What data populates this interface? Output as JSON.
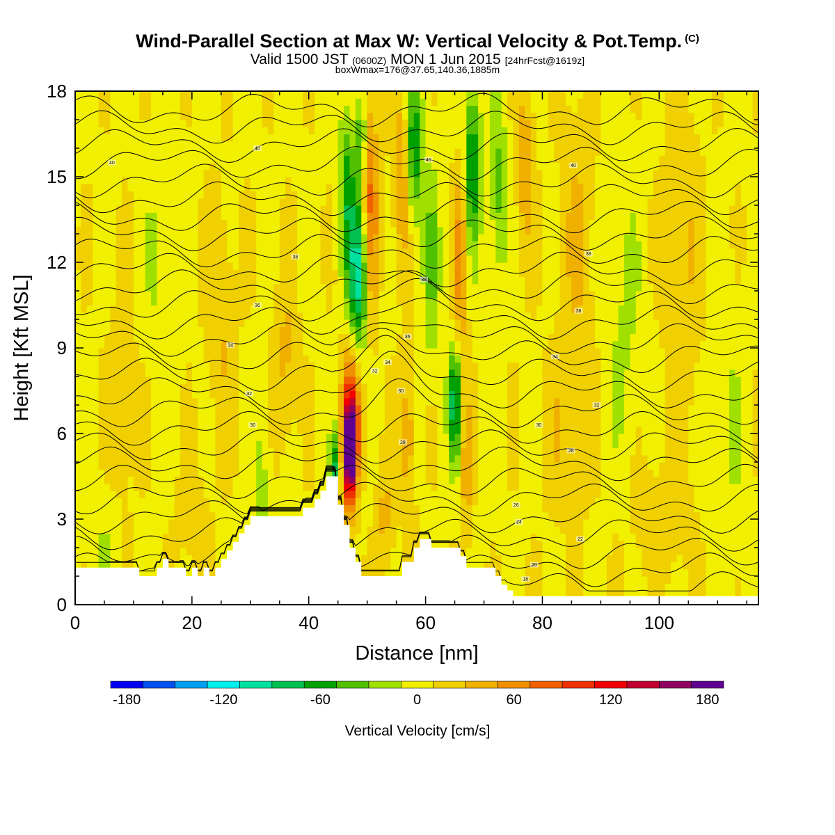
{
  "header": {
    "title": "Wind-Parallel Section at Max W: Vertical Velocity & Pot.Temp.",
    "copyright_mark": "(C)",
    "valid_prefix": "Valid 1500 JST",
    "valid_utc": "(0600Z)",
    "valid_date": "MON 1 Jun 2015",
    "valid_fcst": "[24hrFcst@1619z]",
    "box_info": "boxWmax=176@37.65,140.36,1885m"
  },
  "colors": {
    "terrain": "#ffffff",
    "contour": "#000000",
    "palette": [
      "#0000f0",
      "#0050f0",
      "#00a0f0",
      "#00f0f0",
      "#00e0a0",
      "#00c050",
      "#00a000",
      "#50c000",
      "#a0e000",
      "#f0f000",
      "#f0d000",
      "#f0b000",
      "#f09000",
      "#f06000",
      "#f03000",
      "#f00000",
      "#c00030",
      "#900060",
      "#600090"
    ]
  },
  "chart_data": {
    "type": "heatmap",
    "title": "Wind-Parallel Section at Max W: Vertical Velocity & Pot.Temp.",
    "xlabel": "Distance [nm]",
    "ylabel": "Height [Kft MSL]",
    "xlim": [
      0,
      117
    ],
    "ylim": [
      0,
      18
    ],
    "x_ticks": [
      0,
      20,
      40,
      60,
      80,
      100
    ],
    "y_ticks": [
      0,
      3,
      6,
      9,
      12,
      15,
      18
    ],
    "fill_variable": "Vertical Velocity [cm/s]",
    "colorbar": {
      "title": "Vertical Velocity [cm/s]",
      "min": -190,
      "max": 190,
      "step": 20,
      "ticks": [
        -180,
        -120,
        -60,
        0,
        60,
        120,
        180
      ]
    },
    "terrain_profile": {
      "x": [
        0,
        11,
        11,
        14,
        14,
        15,
        15,
        16,
        16,
        19,
        19,
        20,
        20,
        21,
        21,
        22,
        22,
        23,
        23,
        24,
        24,
        25,
        25,
        26,
        26,
        27,
        27,
        28,
        28,
        29,
        29,
        30,
        30,
        39,
        39,
        41,
        41,
        42,
        42,
        43,
        43,
        45,
        45,
        46,
        46,
        47,
        47,
        48,
        48,
        49,
        49,
        50,
        50,
        51,
        51,
        56,
        56,
        58,
        58,
        59,
        59,
        60,
        60,
        61,
        61,
        66,
        66,
        67,
        67,
        72,
        72,
        73,
        73,
        74,
        74,
        75,
        75,
        76,
        76,
        117
      ],
      "height_kft": [
        1.3,
        1.3,
        1.0,
        1.0,
        1.3,
        1.3,
        1.6,
        1.6,
        1.3,
        1.3,
        1.0,
        1.0,
        1.3,
        1.3,
        1.0,
        1.0,
        1.3,
        1.3,
        1.0,
        1.0,
        1.3,
        1.3,
        1.6,
        1.6,
        1.9,
        1.9,
        2.2,
        2.2,
        2.5,
        2.5,
        2.8,
        2.8,
        3.1,
        3.1,
        3.4,
        3.4,
        3.7,
        3.7,
        4.0,
        4.0,
        4.5,
        4.5,
        3.5,
        3.5,
        2.8,
        2.8,
        2.0,
        2.0,
        1.5,
        1.5,
        1.0,
        1.0,
        1.0,
        1.0,
        1.0,
        1.0,
        1.5,
        1.5,
        2.0,
        2.0,
        2.3,
        2.3,
        2.3,
        2.3,
        2.0,
        2.0,
        1.7,
        1.7,
        1.3,
        1.3,
        1.0,
        1.0,
        0.7,
        0.7,
        0.5,
        0.5,
        0.3,
        0.3,
        0.3,
        0.3
      ]
    },
    "w_features": [
      {
        "x": 47,
        "z": 5.3,
        "w": 185,
        "sx": 1.1,
        "sz": 1.8
      },
      {
        "x": 47.5,
        "z": 7.0,
        "w": 80,
        "sx": 1.8,
        "sz": 2.5
      },
      {
        "x": 44.5,
        "z": 4.5,
        "w": -80,
        "sx": 0.8,
        "sz": 1.5
      },
      {
        "x": 48.5,
        "z": 11.5,
        "w": -110,
        "sx": 1.6,
        "sz": 3.0
      },
      {
        "x": 46.5,
        "z": 14.5,
        "w": -60,
        "sx": 1.3,
        "sz": 3.0
      },
      {
        "x": 49,
        "z": 16.5,
        "w": -50,
        "sx": 1.0,
        "sz": 1.5
      },
      {
        "x": 50.5,
        "z": 14.0,
        "w": 70,
        "sx": 1.4,
        "sz": 4.0
      },
      {
        "x": 58,
        "z": 16.0,
        "w": -80,
        "sx": 1.4,
        "sz": 2.5
      },
      {
        "x": 56,
        "z": 15.0,
        "w": 50,
        "sx": 1.5,
        "sz": 3.0
      },
      {
        "x": 61,
        "z": 12.0,
        "w": -40,
        "sx": 1.5,
        "sz": 3.5
      },
      {
        "x": 65,
        "z": 7.0,
        "w": -90,
        "sx": 1.1,
        "sz": 2.0
      },
      {
        "x": 66,
        "z": 12.0,
        "w": 60,
        "sx": 1.2,
        "sz": 3.0
      },
      {
        "x": 68,
        "z": 15.5,
        "w": -75,
        "sx": 1.4,
        "sz": 3.0
      },
      {
        "x": 67,
        "z": 5.0,
        "w": 40,
        "sx": 1.0,
        "sz": 2.5
      },
      {
        "x": 72.5,
        "z": 14.5,
        "w": -45,
        "sx": 1.5,
        "sz": 3.0
      },
      {
        "x": 77,
        "z": 15.5,
        "w": 40,
        "sx": 1.5,
        "sz": 3.0
      },
      {
        "x": 57,
        "z": 6.0,
        "w": 40,
        "sx": 1.3,
        "sz": 3.0
      },
      {
        "x": 53,
        "z": 3.0,
        "w": 30,
        "sx": 1.5,
        "sz": 2.0
      },
      {
        "x": 32,
        "z": 4.5,
        "w": -25,
        "sx": 1.5,
        "sz": 2.5
      },
      {
        "x": 36,
        "z": 8.5,
        "w": 30,
        "sx": 2.0,
        "sz": 3.0
      },
      {
        "x": 25,
        "z": 10.0,
        "w": 25,
        "sx": 2.5,
        "sz": 4.0
      },
      {
        "x": 15,
        "z": 12.0,
        "w": -20,
        "sx": 3.0,
        "sz": 4.0
      },
      {
        "x": 86,
        "z": 13.0,
        "w": 25,
        "sx": 3.0,
        "sz": 5.0
      },
      {
        "x": 94,
        "z": 10.0,
        "w": -20,
        "sx": 3.0,
        "sz": 5.0
      },
      {
        "x": 104,
        "z": 12.0,
        "w": 25,
        "sx": 3.0,
        "sz": 6.0
      },
      {
        "x": 112,
        "z": 6.0,
        "w": -15,
        "sx": 3.0,
        "sz": 5.0
      },
      {
        "x": 84,
        "z": 6.0,
        "w": 20,
        "sx": 4.0,
        "sz": 3.0
      },
      {
        "x": 100,
        "z": 3.0,
        "w": 20,
        "sx": 5.0,
        "sz": 2.0
      },
      {
        "x": 8,
        "z": 7.0,
        "w": 20,
        "sx": 2.5,
        "sz": 4.0
      },
      {
        "x": 5,
        "z": 2.5,
        "w": -15,
        "sx": 3.0,
        "sz": 2.0
      },
      {
        "x": 20,
        "z": 3.0,
        "w": 15,
        "sx": 3.0,
        "sz": 2.0
      }
    ],
    "pot_temp_labels": [
      {
        "text": "40",
        "x": 6.3,
        "z": 15.5
      },
      {
        "text": "40",
        "x": 31.2,
        "z": 16.0
      },
      {
        "text": "40",
        "x": 60.5,
        "z": 15.6
      },
      {
        "text": "40",
        "x": 85.3,
        "z": 15.4
      },
      {
        "text": "38",
        "x": 37.7,
        "z": 12.2
      },
      {
        "text": "38",
        "x": 59.7,
        "z": 11.4
      },
      {
        "text": "38",
        "x": 87.9,
        "z": 12.3
      },
      {
        "text": "36",
        "x": 31.2,
        "z": 10.5
      },
      {
        "text": "36",
        "x": 56.9,
        "z": 9.4
      },
      {
        "text": "36",
        "x": 86.2,
        "z": 10.3
      },
      {
        "text": "34",
        "x": 26.6,
        "z": 9.1
      },
      {
        "text": "34",
        "x": 53.5,
        "z": 8.5
      },
      {
        "text": "34",
        "x": 82.2,
        "z": 8.7
      },
      {
        "text": "32",
        "x": 51.3,
        "z": 8.2
      },
      {
        "text": "32",
        "x": 29.8,
        "z": 7.4
      },
      {
        "text": "32",
        "x": 89.3,
        "z": 7.0
      },
      {
        "text": "30",
        "x": 55.8,
        "z": 7.5
      },
      {
        "text": "30",
        "x": 30.4,
        "z": 6.3
      },
      {
        "text": "30",
        "x": 79.4,
        "z": 6.3
      },
      {
        "text": "28",
        "x": 56.1,
        "z": 5.7
      },
      {
        "text": "28",
        "x": 84.9,
        "z": 5.4
      },
      {
        "text": "26",
        "x": 75.5,
        "z": 3.5
      },
      {
        "text": "24",
        "x": 76.0,
        "z": 2.9
      },
      {
        "text": "22",
        "x": 86.5,
        "z": 2.3
      },
      {
        "text": "20",
        "x": 78.6,
        "z": 1.4
      },
      {
        "text": "18",
        "x": 77.1,
        "z": 0.9
      }
    ]
  }
}
